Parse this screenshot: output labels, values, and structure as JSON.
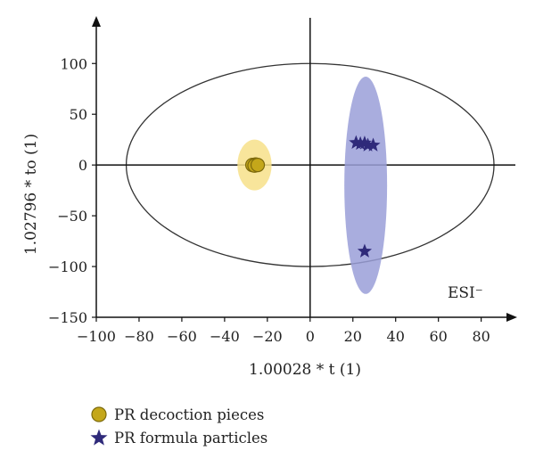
{
  "chart_data": {
    "type": "scatter",
    "title": "",
    "xlabel": "1.00028 * t (1)",
    "ylabel": "1.02796 * to (1)",
    "xlim": [
      -100,
      96
    ],
    "ylim": [
      -150,
      145
    ],
    "x_ticks": [
      -100,
      -80,
      -60,
      -40,
      -20,
      0,
      20,
      40,
      60,
      80
    ],
    "y_ticks": [
      -150,
      -100,
      -50,
      0,
      50,
      100
    ],
    "x_tick_labels": [
      "−100",
      "−80",
      "−60",
      "−40",
      "−20",
      "0",
      "20",
      "40",
      "60",
      "80"
    ],
    "y_tick_labels": [
      "−150",
      "−100",
      "−50",
      "0",
      "50",
      "100"
    ],
    "grid": false,
    "annotation": "ESI⁻",
    "ellipse_95": {
      "center": [
        0,
        0
      ],
      "rx": 86,
      "ry": 100
    },
    "series": [
      {
        "name": "PR decoction pieces",
        "marker": "circle",
        "color": "#c4a71a",
        "ellipse_color": "#f7e08a",
        "ellipse": {
          "center": [
            -26,
            0
          ],
          "rx": 8,
          "ry": 25
        },
        "points": [
          [
            -27,
            0
          ],
          [
            -25.5,
            0.5
          ],
          [
            -26,
            -0.5
          ],
          [
            -24.5,
            0
          ]
        ]
      },
      {
        "name": "PR formula particles",
        "marker": "star",
        "color": "#2f2a7a",
        "ellipse_color": "#9a9fd8",
        "ellipse": {
          "center": [
            26,
            -20
          ],
          "rx": 10,
          "ry": 107
        },
        "points": [
          [
            21.5,
            22
          ],
          [
            23.5,
            21
          ],
          [
            25.5,
            21.5
          ],
          [
            27,
            19.5
          ],
          [
            29.5,
            19.5
          ],
          [
            25.5,
            -85
          ]
        ]
      }
    ],
    "legend_placement": "bottom-left"
  }
}
